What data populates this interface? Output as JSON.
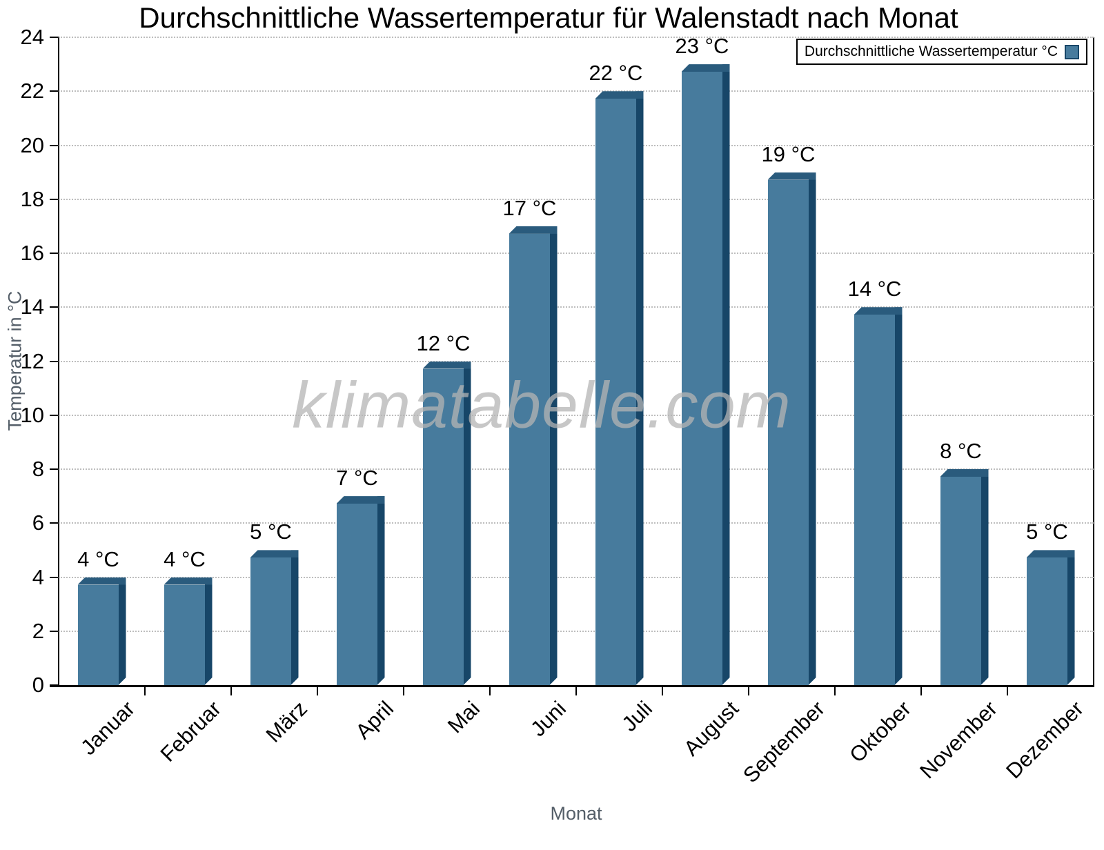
{
  "watermark": "klimatabelle.com",
  "chart_data": {
    "type": "bar",
    "title": "Durchschnittliche Wassertemperatur für Walenstadt nach Monat",
    "categories": [
      "Januar",
      "Februar",
      "März",
      "April",
      "Mai",
      "Juni",
      "Juli",
      "August",
      "September",
      "Oktober",
      "November",
      "Dezember"
    ],
    "values": [
      4,
      4,
      5,
      7,
      12,
      17,
      22,
      23,
      19,
      14,
      8,
      5
    ],
    "value_labels": [
      "4 °C",
      "4 °C",
      "5 °C",
      "7 °C",
      "12 °C",
      "17 °C",
      "22 °C",
      "23 °C",
      "19 °C",
      "14 °C",
      "8 °C",
      "5 °C"
    ],
    "xlabel": "Monat",
    "ylabel": "Temperatur in °C",
    "ylim": [
      0,
      24
    ],
    "ytick_interval": 2,
    "yticks": [
      0,
      2,
      4,
      6,
      8,
      10,
      12,
      14,
      16,
      18,
      20,
      22,
      24
    ],
    "grid": "horizontal-dotted",
    "legend": {
      "label": "Durchschnittliche Wassertemperatur °C",
      "position": "top-right"
    },
    "colors": {
      "bar_face": "#477B9D",
      "bar_top": "#2A5B7D",
      "bar_side": "#174668",
      "grid": "#BDBDBD",
      "axis_line": "#000000",
      "tick_text": "#000000",
      "axis_title_text": "#545E68",
      "watermark_text": "#B4B4B4"
    }
  }
}
